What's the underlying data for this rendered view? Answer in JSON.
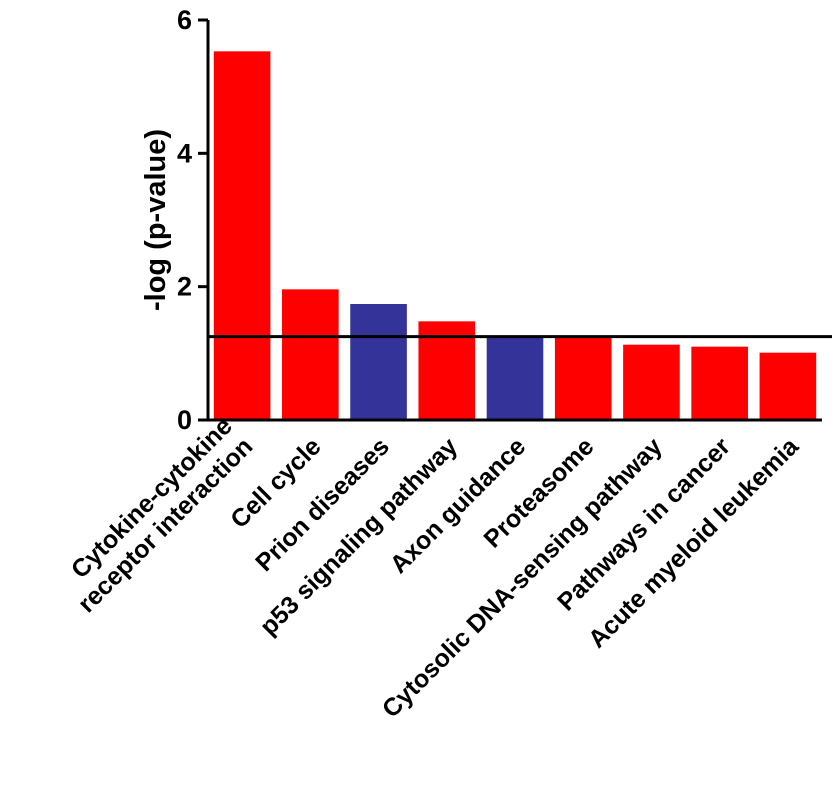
{
  "chart_data": {
    "type": "bar",
    "categories": [
      [
        "Cytokine-cytokine",
        "receptor interaction"
      ],
      [
        "Cell cycle"
      ],
      [
        "Prion diseases"
      ],
      [
        "p53 signaling pathway"
      ],
      [
        "Axon guidance"
      ],
      [
        "Proteasome"
      ],
      [
        "Cytosolic DNA-sensing pathway"
      ],
      [
        "Pathways in cancer"
      ],
      [
        "Acute myeloid leukemia"
      ]
    ],
    "values": [
      5.53,
      1.96,
      1.74,
      1.48,
      1.25,
      1.25,
      1.13,
      1.1,
      1.01
    ],
    "bar_colors": [
      "#ff0000",
      "#ff0000",
      "#333399",
      "#ff0000",
      "#333399",
      "#ff0000",
      "#ff0000",
      "#ff0000",
      "#ff0000"
    ],
    "threshold": 1.25,
    "ylabel": "-log (p-value)",
    "ylim": [
      0,
      6
    ],
    "yticks": [
      0,
      2,
      4,
      6
    ],
    "grid": false
  }
}
